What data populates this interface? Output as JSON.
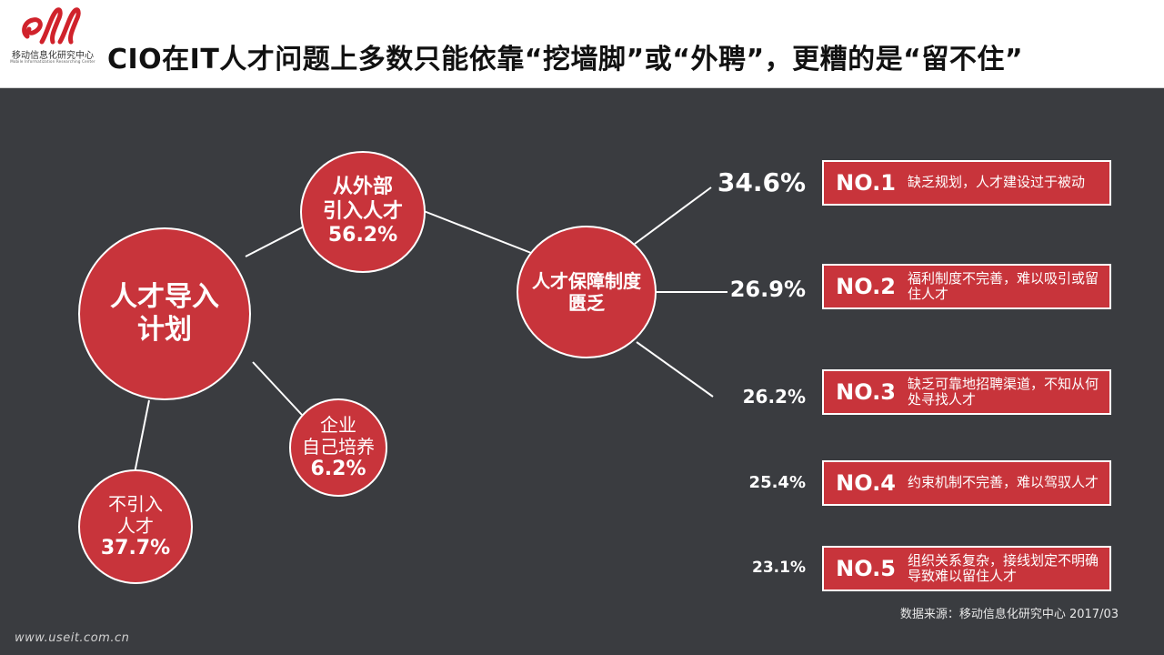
{
  "header": {
    "logo_cn": "移动信息化研究中心",
    "logo_en": "Mobile Informatization Researching Center",
    "title": "CIO在IT人才问题上多数只能依靠“挖墙脚”或“外聘”，更糟的是“留不住”"
  },
  "diagram": {
    "main": {
      "line1": "人才导入",
      "line2": "计划"
    },
    "external": {
      "line1": "从外部",
      "line2": "引入人才",
      "value": "56.2%"
    },
    "internal": {
      "line1": "企业",
      "line2": "自己培养",
      "value": "6.2%"
    },
    "none": {
      "line1": "不引入",
      "line2": "人才",
      "value": "37.7%"
    },
    "lack": {
      "line1": "人才保障制度",
      "line2": "匮乏"
    },
    "reasons": [
      {
        "pct": "34.6%",
        "rank": "NO.1",
        "text": "缺乏规划，人才建设过于被动"
      },
      {
        "pct": "26.9%",
        "rank": "NO.2",
        "text": "福利制度不完善，难以吸引或留住人才"
      },
      {
        "pct": "26.2%",
        "rank": "NO.3",
        "text": "缺乏可靠地招聘渠道，不知从何处寻找人才"
      },
      {
        "pct": "25.4%",
        "rank": "NO.4",
        "text": "约束机制不完善，难以驾驭人才"
      },
      {
        "pct": "23.1%",
        "rank": "NO.5",
        "text": "组织关系复杂，接线划定不明确导致难以留住人才"
      }
    ]
  },
  "footer": {
    "source": "数据来源：移动信息化研究中心 2017/03",
    "website": "www.useit.com.cn"
  },
  "colors": {
    "accent": "#c8343b",
    "background": "#3a3c40",
    "header_bg": "#ffffff"
  }
}
